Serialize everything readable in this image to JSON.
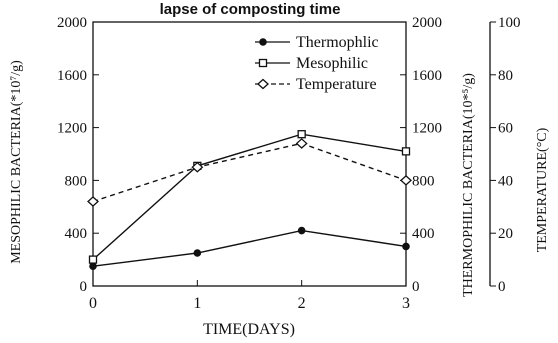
{
  "chart_data": {
    "type": "line",
    "title": "lapse of composting time",
    "xlabel": "TIME(DAYS)",
    "x": [
      0,
      1,
      2,
      3
    ],
    "x_ticks": [
      "0",
      "1",
      "2",
      "3"
    ],
    "xlim": [
      0,
      3
    ],
    "axes": {
      "left": {
        "label": "MESOPHILIC BACTERIA(*10⁷/g)",
        "ylim": [
          0,
          2000
        ],
        "ticks": [
          "0",
          "400",
          "800",
          "1200",
          "1600",
          "2000"
        ]
      },
      "right_inner": {
        "label": "THERMOPHILIC BACTERIA(10*⁵/g)",
        "ylim": [
          0,
          2000
        ],
        "ticks": [
          "0",
          "400",
          "800",
          "1200",
          "1600",
          "2000"
        ]
      },
      "right_outer": {
        "label": "TEMPERATURE(°C)",
        "ylim": [
          0,
          100
        ],
        "ticks": [
          "0",
          "20",
          "40",
          "60",
          "80",
          "100"
        ]
      }
    },
    "series": [
      {
        "name": "Thermophlic",
        "axis": "right_inner",
        "marker": "filled-circle",
        "line": "solid",
        "values": [
          150,
          250,
          420,
          300
        ]
      },
      {
        "name": "Mesophilic",
        "axis": "left",
        "marker": "open-square",
        "line": "solid",
        "values": [
          200,
          910,
          1150,
          1020
        ]
      },
      {
        "name": "Temperature",
        "axis": "right_outer",
        "marker": "open-diamond",
        "line": "dashed",
        "values": [
          32,
          45,
          54,
          40
        ]
      }
    ],
    "legend_position": "top-right",
    "grid": false
  }
}
